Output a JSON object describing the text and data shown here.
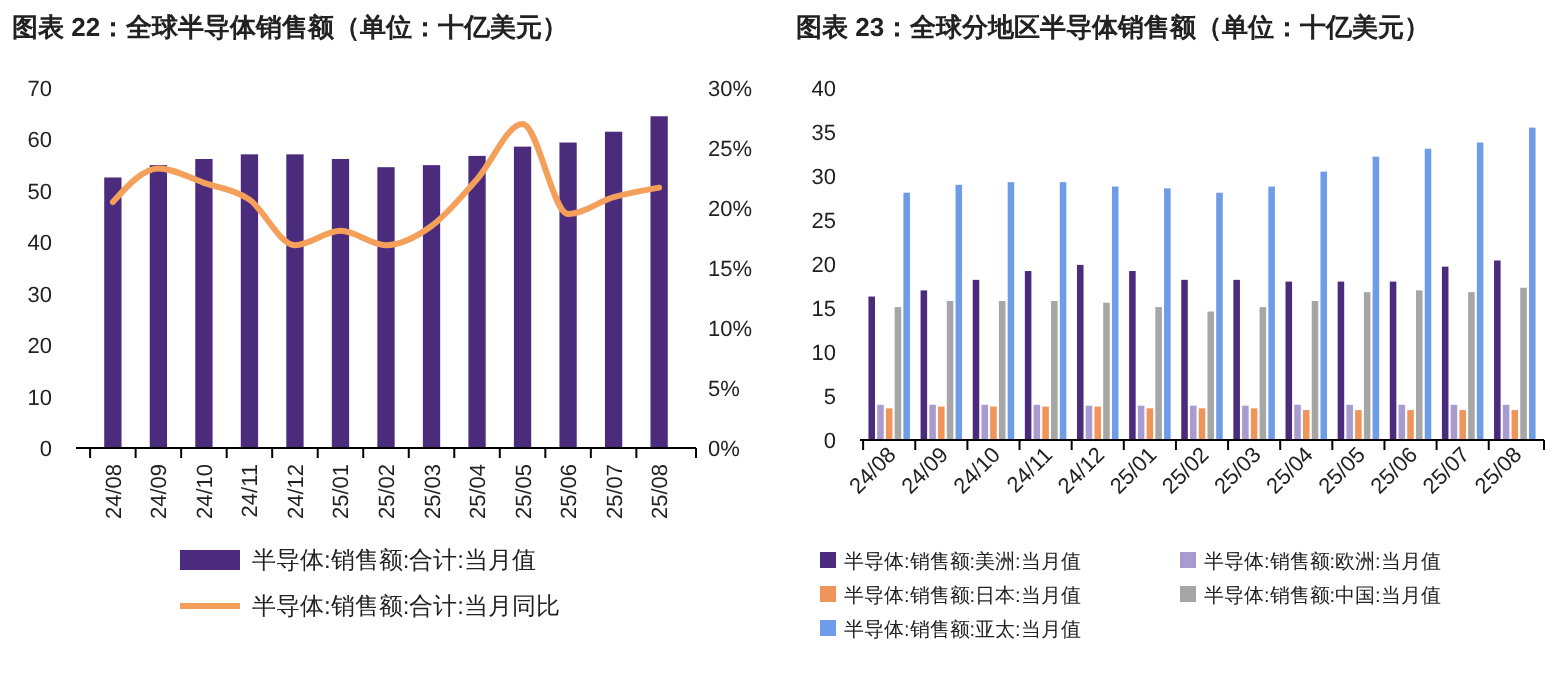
{
  "chart_data": [
    {
      "type": "bar",
      "title": "图表 22：全球半导体销售额（单位：十亿美元）",
      "categories": [
        "24/08",
        "24/09",
        "24/10",
        "24/11",
        "24/12",
        "25/01",
        "25/02",
        "25/03",
        "25/04",
        "25/05",
        "25/06",
        "25/07",
        "25/08"
      ],
      "series": [
        {
          "name": "半导体:销售额:合计:当月值",
          "color": "#4b2c7c",
          "values": [
            52.6,
            55.0,
            56.2,
            57.1,
            57.1,
            56.2,
            54.6,
            55.0,
            56.8,
            58.6,
            59.4,
            61.5,
            64.5
          ]
        },
        {
          "name": "半导体:销售额:合计:当月同比",
          "type": "line",
          "axis": "y2",
          "color": "#f5a05a",
          "values": [
            20.5,
            23.3,
            22.1,
            20.7,
            16.9,
            18.1,
            16.9,
            18.5,
            22.4,
            27.0,
            19.5,
            20.9,
            21.7
          ]
        }
      ],
      "ylim": [
        0,
        70
      ],
      "yticks": [
        0,
        10,
        20,
        30,
        40,
        50,
        60,
        70
      ],
      "y2lim": [
        0,
        30
      ],
      "y2ticks": [
        {
          "value": 0,
          "label": "0%"
        },
        {
          "value": 5,
          "label": "5%"
        },
        {
          "value": 10,
          "label": "10%"
        },
        {
          "value": 15,
          "label": "15%"
        },
        {
          "value": 20,
          "label": "20%"
        },
        {
          "value": 25,
          "label": "25%"
        },
        {
          "value": 30,
          "label": "30%"
        }
      ],
      "grid": false,
      "legend": "bottom",
      "marker": "none",
      "line_style": "solid"
    },
    {
      "type": "bar",
      "title": "图表 23：全球分地区半导体销售额（单位：十亿美元）",
      "categories": [
        "24/08",
        "24/09",
        "24/10",
        "24/11",
        "24/12",
        "25/01",
        "25/02",
        "25/03",
        "25/04",
        "25/05",
        "25/06",
        "25/07",
        "25/08"
      ],
      "series": [
        {
          "name": "半导体:销售额:美洲:当月值",
          "color": "#4b2c7c",
          "values": [
            16.3,
            17.0,
            18.2,
            19.2,
            19.9,
            19.2,
            18.2,
            18.2,
            18.0,
            18.0,
            18.0,
            19.7,
            20.4
          ]
        },
        {
          "name": "半导体:销售额:欧洲:当月值",
          "color": "#a99bd0",
          "values": [
            4.0,
            4.0,
            4.0,
            4.0,
            3.9,
            3.9,
            3.9,
            3.9,
            4.0,
            4.0,
            4.0,
            4.0,
            4.0
          ]
        },
        {
          "name": "半导体:销售额:日本:当月值",
          "color": "#f0955a",
          "values": [
            3.6,
            3.8,
            3.8,
            3.8,
            3.8,
            3.6,
            3.6,
            3.6,
            3.4,
            3.4,
            3.4,
            3.4,
            3.4
          ]
        },
        {
          "name": "半导体:销售额:中国:当月值",
          "color": "#a6a6a6",
          "values": [
            15.1,
            15.8,
            15.8,
            15.8,
            15.6,
            15.1,
            14.6,
            15.1,
            15.8,
            16.8,
            17.0,
            16.8,
            17.3
          ]
        },
        {
          "name": "半导体:销售额:亚太:当月值",
          "color": "#6f9ce8",
          "values": [
            28.1,
            29.0,
            29.3,
            29.3,
            28.8,
            28.6,
            28.1,
            28.8,
            30.5,
            32.2,
            33.1,
            33.8,
            35.5
          ]
        }
      ],
      "ylim": [
        0,
        40
      ],
      "yticks": [
        0,
        5,
        10,
        15,
        20,
        25,
        30,
        35,
        40
      ],
      "grid": false,
      "legend": "bottom"
    }
  ]
}
